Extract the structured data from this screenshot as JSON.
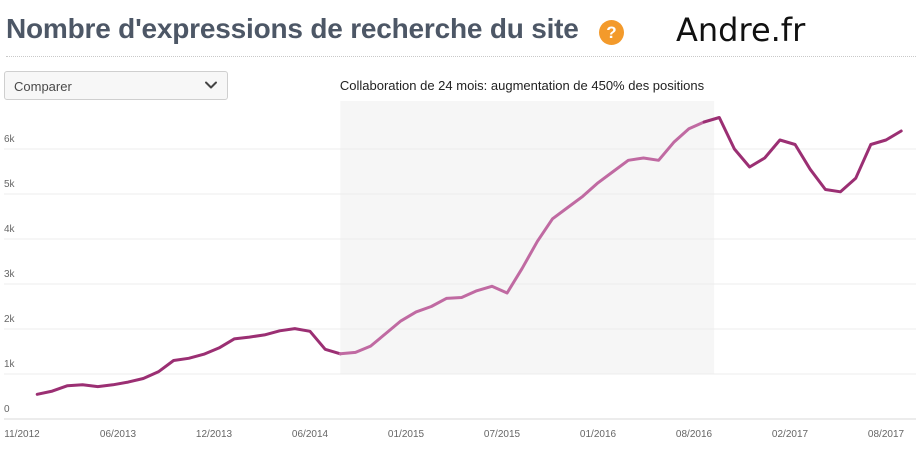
{
  "header": {
    "title": "Nombre d'expressions de recherche du site",
    "help_symbol": "?",
    "site": "Andre.fr"
  },
  "controls": {
    "compare_label": "Comparer"
  },
  "colors": {
    "line": "#9b2f73",
    "line_highlight": "#c06aa2",
    "highlight_band": "#f6f6f6",
    "help": "#f39a2b"
  },
  "chart_data": {
    "type": "line",
    "annotation": "Collaboration de 24 mois: augmentation de 450% des positions",
    "x_ticks": [
      "11/2012",
      "06/2013",
      "12/2013",
      "06/2014",
      "01/2015",
      "07/2015",
      "01/2016",
      "08/2016",
      "02/2017",
      "08/2017"
    ],
    "y_ticks": [
      "0",
      "1k",
      "2k",
      "3k",
      "4k",
      "5k",
      "6k"
    ],
    "ylim": [
      0,
      6800
    ],
    "grid": true,
    "highlight_range": [
      "2014-08",
      "2016-08"
    ],
    "series": [
      {
        "x": [
          "2012-12",
          "2013-01",
          "2013-02",
          "2013-03",
          "2013-04",
          "2013-05",
          "2013-06",
          "2013-07",
          "2013-08",
          "2013-09",
          "2013-10",
          "2013-11",
          "2013-12",
          "2014-01",
          "2014-02",
          "2014-03",
          "2014-04",
          "2014-05",
          "2014-06",
          "2014-07",
          "2014-08",
          "2014-09",
          "2014-10",
          "2014-11",
          "2014-12",
          "2015-01",
          "2015-02",
          "2015-03",
          "2015-04",
          "2015-05",
          "2015-06",
          "2015-07",
          "2015-08",
          "2015-09",
          "2015-10",
          "2015-11",
          "2015-12",
          "2016-01",
          "2016-02",
          "2016-03",
          "2016-04",
          "2016-05",
          "2016-06",
          "2016-07",
          "2016-08",
          "2016-09",
          "2016-10",
          "2016-11",
          "2016-12",
          "2017-01",
          "2017-02",
          "2017-03",
          "2017-04",
          "2017-05",
          "2017-06",
          "2017-07",
          "2017-08",
          "2017-09"
        ],
        "values": [
          550,
          620,
          740,
          760,
          720,
          760,
          820,
          900,
          1050,
          1300,
          1350,
          1440,
          1580,
          1780,
          1820,
          1870,
          1960,
          2010,
          1950,
          1550,
          1450,
          1480,
          1620,
          1900,
          2180,
          2380,
          2500,
          2680,
          2700,
          2850,
          2950,
          2800,
          3350,
          3950,
          4450,
          4700,
          4950,
          5250,
          5500,
          5750,
          5800,
          5750,
          6150,
          6450,
          6600,
          6700,
          6000,
          5600,
          5800,
          6200,
          6100,
          5550,
          5100,
          5050,
          5350,
          6100,
          6200,
          6400
        ]
      }
    ]
  }
}
